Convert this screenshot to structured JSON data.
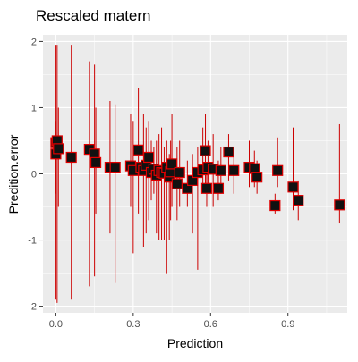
{
  "chart_data": {
    "type": "scatter",
    "title": "Rescaled matern",
    "xlabel": "Prediction",
    "ylabel": "Predition.error",
    "xlim": [
      -0.05,
      1.13
    ],
    "ylim": [
      -2.1,
      2.1
    ],
    "x_ticks": [
      0.0,
      0.3,
      0.6,
      0.9
    ],
    "x_tick_labels": [
      "0.0",
      "0.3",
      "0.6",
      "0.9"
    ],
    "y_ticks": [
      -2,
      -1,
      0,
      1,
      2
    ],
    "y_tick_labels": [
      "-2",
      "-1",
      "0",
      "1",
      "2"
    ],
    "grid": true,
    "background": "#ebebeb",
    "grid_color": "#ffffff",
    "errorbar_color": "#cc0000",
    "point_fill": "#111111",
    "point_stroke": "#e00000",
    "points": [
      {
        "x": 0.0,
        "y": 0.47,
        "ymin": -1.9,
        "ymax": 1.95
      },
      {
        "x": 0.0,
        "y": 0.3,
        "ymin": -0.3,
        "ymax": 0.8
      },
      {
        "x": 0.005,
        "y": 0.5,
        "ymin": -1.95,
        "ymax": 1.95
      },
      {
        "x": 0.01,
        "y": 0.38,
        "ymin": -0.5,
        "ymax": 1.0
      },
      {
        "x": 0.06,
        "y": 0.25,
        "ymin": -1.9,
        "ymax": 1.95
      },
      {
        "x": 0.13,
        "y": 0.37,
        "ymin": -1.7,
        "ymax": 1.7
      },
      {
        "x": 0.15,
        "y": 0.3,
        "ymin": -1.55,
        "ymax": 1.65
      },
      {
        "x": 0.155,
        "y": 0.17,
        "ymin": -0.6,
        "ymax": 1.0
      },
      {
        "x": 0.21,
        "y": 0.1,
        "ymin": -0.9,
        "ymax": 1.1
      },
      {
        "x": 0.23,
        "y": 0.1,
        "ymin": -1.65,
        "ymax": 1.05
      },
      {
        "x": 0.29,
        "y": 0.12,
        "ymin": -0.5,
        "ymax": 0.9
      },
      {
        "x": 0.3,
        "y": 0.05,
        "ymin": -1.2,
        "ymax": 0.8
      },
      {
        "x": 0.32,
        "y": 0.36,
        "ymin": -0.6,
        "ymax": 1.3
      },
      {
        "x": 0.33,
        "y": 0.1,
        "ymin": -0.3,
        "ymax": 0.7
      },
      {
        "x": 0.34,
        "y": 0.05,
        "ymin": -1.1,
        "ymax": 0.9
      },
      {
        "x": 0.35,
        "y": 0.13,
        "ymin": -0.9,
        "ymax": 0.7
      },
      {
        "x": 0.36,
        "y": 0.25,
        "ymin": -0.7,
        "ymax": 0.8
      },
      {
        "x": 0.37,
        "y": 0.02,
        "ymin": -0.4,
        "ymax": 0.5
      },
      {
        "x": 0.38,
        "y": 0.07,
        "ymin": -0.3,
        "ymax": 0.4
      },
      {
        "x": 0.39,
        "y": -0.02,
        "ymin": -0.9,
        "ymax": 0.5
      },
      {
        "x": 0.4,
        "y": 0.05,
        "ymin": -1.0,
        "ymax": 0.6
      },
      {
        "x": 0.41,
        "y": 0.02,
        "ymin": -1.0,
        "ymax": 0.7
      },
      {
        "x": 0.42,
        "y": 0.01,
        "ymin": -1.0,
        "ymax": 0.4
      },
      {
        "x": 0.43,
        "y": 0.1,
        "ymin": -1.5,
        "ymax": 0.5
      },
      {
        "x": 0.44,
        "y": -0.05,
        "ymin": -1.0,
        "ymax": 0.3
      },
      {
        "x": 0.445,
        "y": 0.03,
        "ymin": -0.7,
        "ymax": 0.5
      },
      {
        "x": 0.45,
        "y": 0.15,
        "ymin": -0.5,
        "ymax": 0.9
      },
      {
        "x": 0.47,
        "y": -0.15,
        "ymin": -0.7,
        "ymax": 0.4
      },
      {
        "x": 0.48,
        "y": 0.02,
        "ymin": -0.5,
        "ymax": 0.5
      },
      {
        "x": 0.51,
        "y": -0.22,
        "ymin": -0.5,
        "ymax": 0.2
      },
      {
        "x": 0.53,
        "y": -0.1,
        "ymin": -0.9,
        "ymax": 0.3
      },
      {
        "x": 0.55,
        "y": 0.02,
        "ymin": -1.45,
        "ymax": 0.4
      },
      {
        "x": 0.57,
        "y": 0.06,
        "ymin": -0.2,
        "ymax": 0.7
      },
      {
        "x": 0.58,
        "y": 0.35,
        "ymin": -0.3,
        "ymax": 0.9
      },
      {
        "x": 0.59,
        "y": 0.1,
        "ymin": -0.3,
        "ymax": 0.5
      },
      {
        "x": 0.585,
        "y": -0.22,
        "ymin": -0.5,
        "ymax": 0.1
      },
      {
        "x": 0.61,
        "y": 0.07,
        "ymin": -0.5,
        "ymax": 0.6
      },
      {
        "x": 0.63,
        "y": -0.22,
        "ymin": -0.4,
        "ymax": 0.2
      },
      {
        "x": 0.64,
        "y": 0.05,
        "ymin": -0.3,
        "ymax": 0.4
      },
      {
        "x": 0.67,
        "y": 0.33,
        "ymin": -0.1,
        "ymax": 0.6
      },
      {
        "x": 0.69,
        "y": 0.05,
        "ymin": -0.3,
        "ymax": 0.3
      },
      {
        "x": 0.75,
        "y": 0.1,
        "ymin": -0.2,
        "ymax": 0.5
      },
      {
        "x": 0.77,
        "y": 0.08,
        "ymin": -0.2,
        "ymax": 0.35
      },
      {
        "x": 0.78,
        "y": -0.05,
        "ymin": -0.3,
        "ymax": 0.2
      },
      {
        "x": 0.85,
        "y": -0.48,
        "ymin": -0.6,
        "ymax": -0.3
      },
      {
        "x": 0.86,
        "y": 0.05,
        "ymin": -0.2,
        "ymax": 0.55
      },
      {
        "x": 0.92,
        "y": -0.2,
        "ymin": -0.55,
        "ymax": 0.7
      },
      {
        "x": 0.94,
        "y": -0.4,
        "ymin": -0.7,
        "ymax": -0.1
      },
      {
        "x": 1.1,
        "y": -0.47,
        "ymin": -0.75,
        "ymax": 0.75
      }
    ]
  }
}
